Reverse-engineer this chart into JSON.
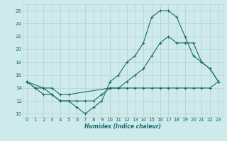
{
  "xlabel": "Humidex (Indice chaleur)",
  "bg_color": "#ceeaea",
  "grid_color": "#b8d4d4",
  "line_color": "#1a6b6b",
  "xlim": [
    -0.5,
    23.5
  ],
  "ylim": [
    9.5,
    27
  ],
  "xticks": [
    0,
    1,
    2,
    3,
    4,
    5,
    6,
    7,
    8,
    9,
    10,
    11,
    12,
    13,
    14,
    15,
    16,
    17,
    18,
    19,
    20,
    21,
    22,
    23
  ],
  "yticks": [
    10,
    12,
    14,
    16,
    18,
    20,
    22,
    24,
    26
  ],
  "line1_x": [
    0,
    1,
    2,
    3,
    4,
    5,
    6,
    7,
    8,
    9,
    10,
    11,
    12,
    13,
    14,
    15,
    16,
    17,
    18,
    19,
    20,
    21,
    22,
    23
  ],
  "line1_y": [
    15,
    14,
    13,
    13,
    12,
    12,
    11,
    10,
    11,
    12,
    15,
    16,
    18,
    19,
    21,
    25,
    26,
    26,
    25,
    22,
    19,
    18,
    17,
    15
  ],
  "line2_x": [
    0,
    2,
    3,
    4,
    5,
    10,
    11,
    12,
    13,
    14,
    15,
    16,
    17,
    18,
    19,
    20,
    21,
    22,
    23
  ],
  "line2_y": [
    15,
    14,
    14,
    13,
    13,
    14,
    14,
    15,
    16,
    17,
    19,
    21,
    22,
    21,
    21,
    21,
    18,
    17,
    15
  ],
  "line3_x": [
    0,
    1,
    2,
    3,
    4,
    5,
    6,
    7,
    8,
    9,
    10,
    11,
    12,
    13,
    14,
    15,
    16,
    17,
    18,
    19,
    20,
    21,
    22,
    23
  ],
  "line3_y": [
    15,
    14,
    14,
    13,
    12,
    12,
    12,
    12,
    12,
    13,
    14,
    14,
    14,
    14,
    14,
    14,
    14,
    14,
    14,
    14,
    14,
    14,
    14,
    15
  ]
}
